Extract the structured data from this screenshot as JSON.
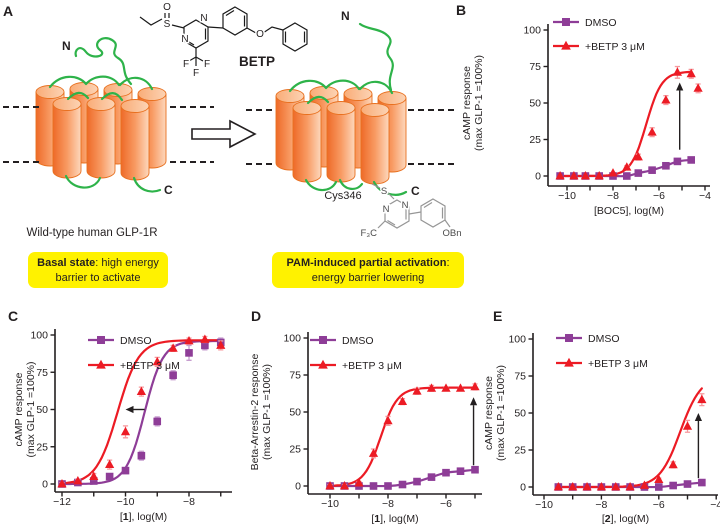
{
  "panels": {
    "a": "A",
    "b": "B",
    "c": "C",
    "d": "D",
    "e": "E"
  },
  "colors": {
    "dmso": "#8e3d97",
    "dmso_err": "#c79ecf",
    "betp": "#ec1b24",
    "betp_err": "#f7999e",
    "green": "#2eb34a",
    "axis": "#231f20",
    "yellow": "#fff200",
    "orange_dark": "#ee6a28",
    "orange_mid": "#f89a62",
    "orange_light": "#fdd8bd"
  },
  "panel_a": {
    "betp_label": "BETP",
    "atoms_betp": {
      "o1": "O",
      "s": "S",
      "n1": "N",
      "n2": "N",
      "f1": "F",
      "f2": "F",
      "f3": "F",
      "o2": "O"
    },
    "left_receptor": {
      "n": "N",
      "c": "C"
    },
    "right_receptor": {
      "n": "N",
      "c": "C"
    },
    "cys_label": "Cys346",
    "adduct": {
      "s": "S",
      "n1": "N",
      "n2": "N",
      "f3c": "F₃C",
      "obn": "OBn"
    },
    "caption_left": "Wild-type human GLP-1R",
    "box_left": {
      "bold": "Basal state",
      "rest": ": high energy",
      "line2": "barrier to activate"
    },
    "box_right": {
      "bold": "PAM-induced partial activation",
      "rest": ":",
      "line2": "energy barrier lowering"
    }
  },
  "chart_data": [
    {
      "id": "B",
      "type": "scatter",
      "ylabel": [
        "cAMP response",
        "(max GLP-1 =100%)"
      ],
      "xlabel_rich": [
        {
          "t": "[BOC5], log(M)",
          "b": false
        }
      ],
      "xlim": [
        -10.83,
        -3.78
      ],
      "xticks_labeled": [
        -10,
        -8,
        -6,
        -4
      ],
      "xticks_minor": [
        -9,
        -7,
        -5
      ],
      "ylim": [
        0,
        100
      ],
      "yticks": [
        0,
        25,
        50,
        75,
        100
      ],
      "series": [
        {
          "name": "DMSO",
          "color_key": "dmso",
          "err_key": "dmso_err",
          "marker": "square",
          "x": [
            -10.3,
            -9.7,
            -9.2,
            -8.6,
            -8.0,
            -7.4,
            -6.9,
            -6.3,
            -5.7,
            -5.2,
            -4.6
          ],
          "y": [
            0,
            0,
            0,
            0,
            0,
            0,
            2,
            4,
            7,
            10,
            11
          ],
          "err": [
            0,
            0,
            0,
            0,
            0,
            0,
            0,
            1,
            1,
            1,
            1
          ]
        },
        {
          "name": "+BETP 3 μM",
          "color_key": "betp",
          "err_key": "betp_err",
          "marker": "triangle",
          "x": [
            -10.3,
            -9.7,
            -9.2,
            -8.6,
            -8.0,
            -7.4,
            -6.9,
            -6.3,
            -5.7,
            -5.2,
            -4.6
          ],
          "y": [
            0,
            0,
            0,
            0,
            2,
            6,
            13,
            30,
            52,
            71,
            70
          ],
          "err": [
            0,
            0,
            0,
            0,
            0,
            1,
            2,
            3,
            3,
            4,
            3
          ],
          "fit": {
            "top": 71.5,
            "logec50": -6.55,
            "hill": 1.3
          },
          "extra_points": [
            {
              "x": -4.3,
              "y": 60,
              "err": 3
            }
          ]
        }
      ],
      "arrow": {
        "x1": -5.1,
        "y1": 18,
        "x2": -5.1,
        "y2": 64
      }
    },
    {
      "id": "C",
      "type": "scatter",
      "ylabel": [
        "cAMP response",
        "(max GLP-1 =100%)"
      ],
      "xlabel_rich": [
        {
          "t": "[",
          "b": false
        },
        {
          "t": "1",
          "b": true
        },
        {
          "t": "], log(M)",
          "b": false
        }
      ],
      "xlim": [
        -12.22,
        -6.65
      ],
      "xticks_labeled": [
        -12,
        -10,
        -8
      ],
      "xticks_minor": [
        -11,
        -9,
        -7
      ],
      "ylim": [
        0,
        100
      ],
      "yticks": [
        0,
        25,
        50,
        75,
        100
      ],
      "series": [
        {
          "name": "DMSO",
          "color_key": "dmso",
          "err_key": "dmso_err",
          "marker": "square",
          "x": [
            -12,
            -11.5,
            -11,
            -10.5,
            -10,
            -9.5,
            -9,
            -8.5,
            -8,
            -7.5,
            -7
          ],
          "y": [
            0,
            1,
            2,
            5,
            9,
            19,
            42,
            73,
            88,
            93,
            95
          ],
          "err": [
            1,
            1,
            1,
            1,
            2,
            3,
            3,
            3,
            5,
            3,
            3
          ],
          "fit": {
            "top": 96,
            "logec50": -9.4,
            "hill": 1.5
          }
        },
        {
          "name": "+BETP 3 μM",
          "color_key": "betp",
          "err_key": "betp_err",
          "marker": "triangle",
          "x": [
            -12,
            -11.5,
            -11,
            -10.5,
            -10,
            -9.5,
            -9,
            -8.5,
            -8,
            -7.5,
            -7
          ],
          "y": [
            0,
            2,
            5,
            13,
            35,
            62,
            82,
            91,
            96,
            97,
            93
          ],
          "err": [
            1,
            1,
            2,
            3,
            4,
            3,
            3,
            2,
            2,
            2,
            3
          ],
          "fit": {
            "top": 96.5,
            "logec50": -10.25,
            "hill": 1.3
          }
        }
      ],
      "arrow": {
        "x1": -9.4,
        "y1": 50,
        "x2": -10.0,
        "y2": 50
      }
    },
    {
      "id": "D",
      "type": "scatter",
      "ylabel": [
        "Beta-Arrestin-2 response",
        "(max GLP-1 =100%)"
      ],
      "xlabel_rich": [
        {
          "t": "[",
          "b": false
        },
        {
          "t": "1",
          "b": true
        },
        {
          "t": "], log(M)",
          "b": false
        }
      ],
      "xlim": [
        -10.76,
        -4.75
      ],
      "xticks_labeled": [
        -10,
        -8,
        -6
      ],
      "xticks_minor": [
        -9,
        -7,
        -5
      ],
      "ylim": [
        0,
        100
      ],
      "yticks": [
        0,
        25,
        50,
        75,
        100
      ],
      "series": [
        {
          "name": "DMSO",
          "color_key": "dmso",
          "err_key": "dmso_err",
          "marker": "square",
          "x": [
            -10,
            -9.5,
            -9,
            -8.5,
            -8,
            -7.5,
            -7,
            -6.5,
            -6,
            -5.5,
            -5
          ],
          "y": [
            0,
            0,
            0,
            0,
            0,
            1,
            3,
            6,
            9,
            10,
            11
          ],
          "err": [
            0,
            0,
            0,
            0,
            0,
            0,
            1,
            1,
            1,
            1,
            1
          ]
        },
        {
          "name": "+BETP 3 μM",
          "color_key": "betp",
          "err_key": "betp_err",
          "marker": "triangle",
          "x": [
            -10,
            -9.5,
            -9,
            -8.5,
            -8,
            -7.5,
            -7,
            -6.5,
            -6,
            -5.5,
            -5
          ],
          "y": [
            0,
            0,
            2,
            22,
            44,
            57,
            64,
            66,
            66,
            66,
            67
          ],
          "err": [
            1,
            1,
            1,
            3,
            3,
            2,
            2,
            2,
            1,
            1,
            2
          ],
          "fit": {
            "top": 66.5,
            "logec50": -8.25,
            "hill": 1.5
          }
        }
      ],
      "arrow": {
        "x1": -5.05,
        "y1": 14,
        "x2": -5.05,
        "y2": 60
      }
    },
    {
      "id": "E",
      "type": "scatter",
      "ylabel": [
        "cAMP response",
        "(max GLP-1 =100%)"
      ],
      "xlabel_rich": [
        {
          "t": "[",
          "b": false
        },
        {
          "t": "2",
          "b": true
        },
        {
          "t": "], log(M)",
          "b": false
        }
      ],
      "xlim": [
        -10.38,
        -3.86
      ],
      "xticks_labeled": [
        -10,
        -8,
        -6,
        -4
      ],
      "xticks_minor": [
        -9,
        -7,
        -5
      ],
      "ylim": [
        0,
        100
      ],
      "yticks": [
        0,
        25,
        50,
        75,
        100
      ],
      "series": [
        {
          "name": "DMSO",
          "color_key": "dmso",
          "err_key": "dmso_err",
          "marker": "square",
          "x": [
            -9.5,
            -9,
            -8.5,
            -8,
            -7.5,
            -7,
            -6.5,
            -6,
            -5.5,
            -5,
            -4.5
          ],
          "y": [
            0,
            0,
            0,
            0,
            0,
            0,
            0,
            0,
            1,
            2,
            3
          ],
          "err": [
            0,
            0,
            0,
            0,
            0,
            0,
            0,
            0,
            0,
            0,
            1
          ]
        },
        {
          "name": "+BETP 3 μM",
          "color_key": "betp",
          "err_key": "betp_err",
          "marker": "triangle",
          "x": [
            -9.5,
            -9,
            -8.5,
            -8,
            -7.5,
            -7,
            -6.5,
            -6,
            -5.5,
            -5,
            -4.5
          ],
          "y": [
            0,
            0,
            0,
            0,
            0,
            0,
            1,
            5,
            15,
            41,
            59
          ],
          "err": [
            0,
            0,
            0,
            0,
            0,
            0,
            0,
            1,
            2,
            4,
            4
          ],
          "fit": {
            "top": 75,
            "logec50": -5.25,
            "hill": 1.2
          }
        }
      ],
      "arrow": {
        "x1": -4.62,
        "y1": 6,
        "x2": -4.62,
        "y2": 50
      }
    }
  ]
}
